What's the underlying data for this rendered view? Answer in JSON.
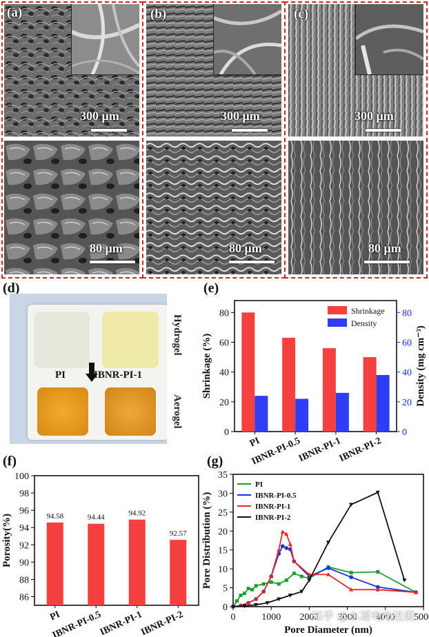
{
  "panels": {
    "a": {
      "label": "(a)",
      "scale_top": "300 μm",
      "scale_bottom": "80 μm"
    },
    "b": {
      "label": "(b)",
      "scale_top": "300 μm",
      "scale_bottom": "80 μm"
    },
    "c": {
      "label": "(c)",
      "scale_top": "300 μm",
      "scale_bottom": "80 μm"
    },
    "d": {
      "label": "(d)",
      "hydrogel": "Hydrogel",
      "aerogel": "Aerogel",
      "left_sample": "PI",
      "right_sample": "IBNR-PI-1"
    },
    "e": {
      "label": "(e)"
    },
    "f": {
      "label": "(f)"
    },
    "g": {
      "label": "(g)"
    }
  },
  "watermark": "知乎 @水凝电动进展",
  "colors": {
    "frame": "#d62020",
    "shrinkage": "#f54040",
    "density": "#2f3ef5",
    "PI": "#1e9e32",
    "IBNR-PI-0.5": "#1a2fe0",
    "IBNR-PI-1": "#e82525",
    "IBNR-PI-2": "#111111"
  },
  "chart_data": [
    {
      "panel": "e",
      "type": "bar",
      "categories": [
        "PI",
        "IBNR-PI-0.5",
        "IBNR-PI-1",
        "IBNR-PI-2"
      ],
      "series": [
        {
          "name": "Shrinkage",
          "values": [
            80,
            63,
            56,
            50
          ],
          "axis": "left"
        },
        {
          "name": "Density",
          "values": [
            24,
            22,
            26,
            38
          ],
          "axis": "right"
        }
      ],
      "ylabel": "Shrinkage (%)",
      "ylabel_right": "Density (mg cm⁻³)",
      "ylim": [
        0,
        88
      ],
      "yticks": [
        0,
        20,
        40,
        60,
        80
      ],
      "legend": "top-right",
      "grid": false
    },
    {
      "panel": "f",
      "type": "bar",
      "categories": [
        "PI",
        "IBNR-PI-0.5",
        "IBNR-PI-1",
        "IBNR-PI-2"
      ],
      "values": [
        94.58,
        94.44,
        94.92,
        92.57
      ],
      "data_labels": [
        "94.58",
        "94.44",
        "94.92",
        "92.57"
      ],
      "ylabel": "Porosity(%)",
      "ylim": [
        85,
        100
      ],
      "yticks": [
        86,
        88,
        90,
        92,
        94,
        96,
        98,
        100
      ],
      "grid": false
    },
    {
      "panel": "g",
      "type": "line",
      "xlabel": "Pore Diameter (nm)",
      "ylabel": "Pore Distribution (%)",
      "xlim": [
        0,
        5000
      ],
      "ylim": [
        0,
        35
      ],
      "xticks": [
        0,
        1000,
        2000,
        3000,
        4000,
        5000
      ],
      "yticks": [
        0,
        5,
        10,
        15,
        20,
        25,
        30,
        35
      ],
      "legend": "top-left",
      "series": [
        {
          "name": "PI",
          "x": [
            0,
            100,
            200,
            300,
            400,
            500,
            600,
            800,
            1000,
            1200,
            1400,
            1600,
            1800,
            2000,
            2500,
            3100,
            3800,
            4800
          ],
          "y": [
            0,
            1.5,
            3,
            3.5,
            4.8,
            4.5,
            5.5,
            6,
            6.5,
            6,
            7,
            8.8,
            8,
            7.5,
            10.5,
            9,
            9.2,
            3.8
          ]
        },
        {
          "name": "IBNR-PI-0.5",
          "x": [
            0,
            200,
            400,
            600,
            800,
            1000,
            1200,
            1300,
            1400,
            1500,
            1600,
            2000,
            2500,
            3100,
            3800,
            4800
          ],
          "y": [
            0,
            0.3,
            1,
            2,
            4,
            8,
            14,
            16,
            15.5,
            15.2,
            12,
            8,
            10.2,
            7.8,
            5.2,
            3.8
          ]
        },
        {
          "name": "IBNR-PI-1",
          "x": [
            0,
            200,
            400,
            600,
            800,
            1000,
            1200,
            1300,
            1400,
            1500,
            1600,
            2000,
            2500,
            3100,
            3800,
            4800
          ],
          "y": [
            0,
            0.3,
            1,
            2,
            4,
            8,
            15,
            19.8,
            19.2,
            16.5,
            12,
            8.5,
            8.5,
            4.5,
            4.5,
            3.8
          ]
        },
        {
          "name": "IBNR-PI-2",
          "x": [
            0,
            300,
            600,
            900,
            1200,
            1500,
            1800,
            2000,
            2500,
            3100,
            3800,
            4500
          ],
          "y": [
            0,
            0.2,
            0.5,
            1,
            2,
            3,
            4,
            7,
            17,
            27,
            30.2,
            7
          ]
        }
      ]
    }
  ]
}
